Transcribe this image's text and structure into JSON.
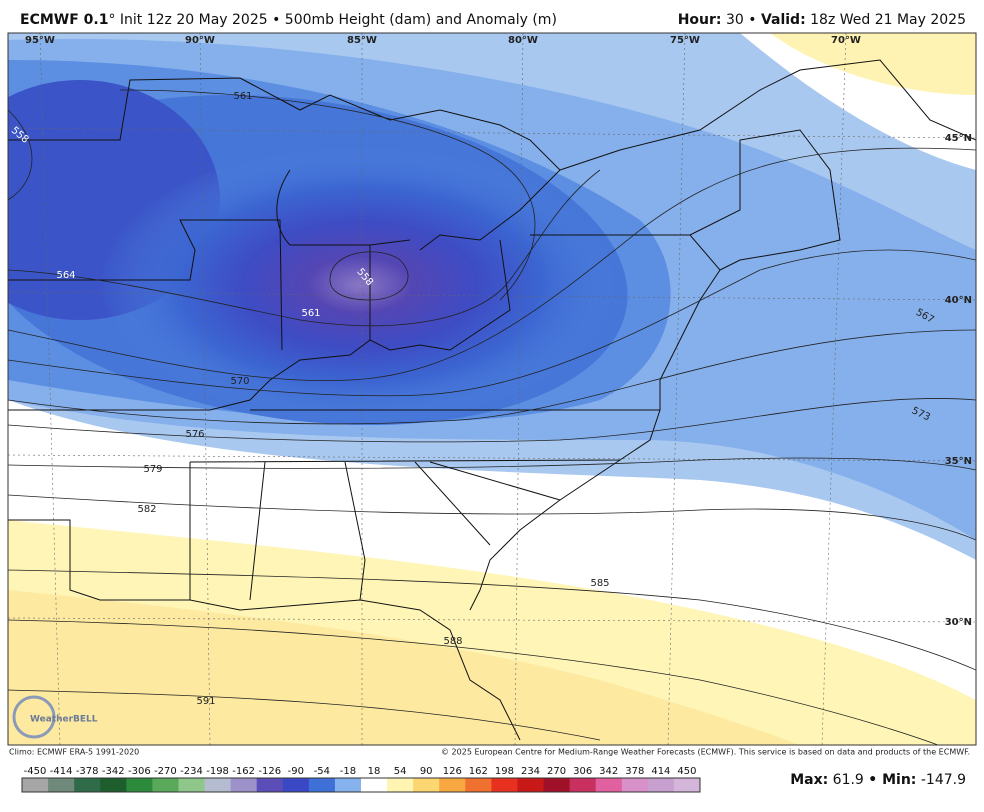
{
  "header": {
    "model": "ECMWF 0.1",
    "subtitle": "° Init 12z 20 May 2025 • 500mb Height (dam) and Anomaly (m)",
    "hour_label": "Hour:",
    "hour_value": "30 •",
    "valid_label": "Valid:",
    "valid_value": "18z Wed 21 May 2025"
  },
  "map": {
    "longitudes": [
      "95°W",
      "90°W",
      "85°W",
      "80°W",
      "75°W",
      "70°W"
    ],
    "latitudes": [
      "45°N",
      "40°N",
      "35°N",
      "30°N"
    ],
    "contour_labels": [
      "561",
      "558",
      "564",
      "558",
      "561",
      "570",
      "576",
      "579",
      "582",
      "585",
      "588",
      "591",
      "567",
      "573"
    ],
    "logo": "WeatherBELL"
  },
  "footer": {
    "climo": "Climo: ECMWF ERA-5 1991-2020",
    "copyright": "© 2025 European Centre for Medium-Range Weather Forecasts (ECMWF). This service is based on data and products of the ECMWF."
  },
  "colorbar": {
    "ticks": [
      -450,
      -414,
      -378,
      -342,
      -306,
      -270,
      -234,
      -198,
      -162,
      -126,
      -90,
      -54,
      -18,
      18,
      54,
      90,
      126,
      162,
      198,
      234,
      270,
      306,
      342,
      378,
      414,
      450
    ],
    "colors": [
      "#a6a6a6",
      "#6f8a7a",
      "#2f6b48",
      "#1d5e2c",
      "#2b8a3c",
      "#5aa85a",
      "#8fc68a",
      "#b5bccf",
      "#9c92c9",
      "#5c4eb8",
      "#3a48c6",
      "#3f70d8",
      "#86b2ee",
      "#ffffff",
      "#fff4b2",
      "#fcd670",
      "#f8a840",
      "#f07030",
      "#e83020",
      "#c81818",
      "#a01028",
      "#c83060",
      "#e060a0",
      "#d890c8",
      "#c8a0d0",
      "#d4b6da"
    ]
  },
  "stats": {
    "max_label": "Max:",
    "max_value": 61.9,
    "min_label": "• Min:",
    "min_value": -147.9
  }
}
